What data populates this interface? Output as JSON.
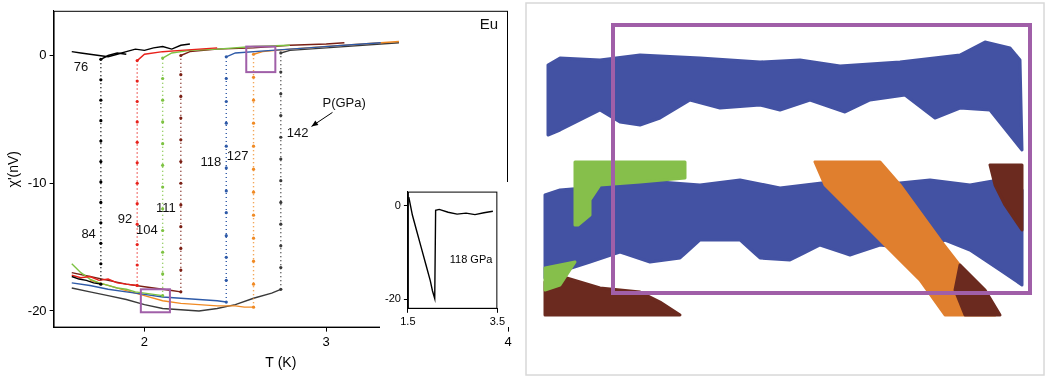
{
  "chart_data": [
    {
      "type": "line",
      "x_label": "T (K)",
      "y_label": "χ'(nV)",
      "annotations": [
        "Eu",
        "P(GPa)"
      ],
      "xlim": [
        1.5,
        4
      ],
      "xticks": [
        2,
        3,
        4
      ],
      "ylim": [
        -21.3,
        3.5
      ],
      "yticks": [
        0,
        -10,
        -20
      ],
      "grid": false,
      "highlight_boxes": [
        {
          "x": [
            2.56,
            2.72
          ],
          "y": [
            -1.3,
            0.7
          ]
        },
        {
          "x": [
            1.98,
            2.14
          ],
          "y": [
            -20.1,
            -18.3
          ]
        }
      ],
      "series": [
        {
          "name": "76",
          "color": "#000000",
          "x": [
            1.6,
            1.65,
            1.7,
            1.75,
            1.8,
            1.85,
            1.9,
            1.95,
            2.0,
            2.05,
            2.1,
            2.15,
            2.2,
            2.25
          ],
          "values": [
            0.3,
            0.2,
            0.1,
            0.0,
            -0.1,
            0.1,
            0.3,
            0.5,
            0.4,
            0.6,
            0.7,
            0.5,
            0.8,
            0.9
          ]
        },
        {
          "name": "84",
          "color": "#000000",
          "x": [
            1.6,
            1.64,
            1.68,
            1.72,
            1.76,
            1.76,
            1.76,
            1.76,
            1.76,
            1.76,
            1.76,
            1.76,
            1.76,
            1.76,
            1.76,
            1.76,
            1.8,
            1.85,
            1.9
          ],
          "values": [
            -17.3,
            -17.5,
            -17.6,
            -17.8,
            -17.9,
            -16.3,
            -14.7,
            -13.1,
            -11.5,
            -9.9,
            -8.3,
            -6.7,
            -5.1,
            -3.5,
            -1.9,
            -0.3,
            0.0,
            0.2,
            0.1
          ]
        },
        {
          "name": "92",
          "color": "#e8211b",
          "x": [
            1.6,
            1.65,
            1.7,
            1.75,
            1.8,
            1.85,
            1.9,
            1.96,
            1.96,
            1.96,
            1.96,
            1.96,
            1.96,
            1.96,
            1.96,
            1.96,
            1.96,
            1.96,
            1.96,
            2.0,
            2.1,
            2.2,
            2.3,
            2.4
          ],
          "values": [
            -17.2,
            -17.4,
            -17.3,
            -17.6,
            -17.5,
            -17.8,
            -17.9,
            -18.0,
            -16.4,
            -14.8,
            -13.2,
            -11.6,
            -10.0,
            -8.4,
            -6.8,
            -5.2,
            -3.6,
            -2.0,
            -0.4,
            0.1,
            0.3,
            0.4,
            0.5,
            0.6
          ]
        },
        {
          "name": "104",
          "color": "#7dc242",
          "x": [
            1.6,
            1.65,
            1.7,
            1.75,
            1.8,
            1.85,
            1.9,
            1.95,
            2.0,
            2.05,
            2.1,
            2.1,
            2.1,
            2.1,
            2.1,
            2.1,
            2.1,
            2.1,
            2.1,
            2.1,
            2.1,
            2.1,
            2.15,
            2.25,
            2.4,
            2.6,
            2.8
          ],
          "values": [
            -16.3,
            -17.0,
            -17.5,
            -17.8,
            -18.0,
            -18.2,
            -18.3,
            -18.5,
            -18.6,
            -18.7,
            -18.8,
            -17.1,
            -15.4,
            -13.7,
            -12.0,
            -10.3,
            -8.6,
            -6.9,
            -5.2,
            -3.5,
            -1.8,
            -0.2,
            0.2,
            0.4,
            0.5,
            0.7,
            0.8
          ]
        },
        {
          "name": "111",
          "color": "#7a1f14",
          "x": [
            1.6,
            1.7,
            1.8,
            1.9,
            2.0,
            2.1,
            2.15,
            2.2,
            2.2,
            2.2,
            2.2,
            2.2,
            2.2,
            2.2,
            2.2,
            2.2,
            2.2,
            2.2,
            2.2,
            2.25,
            2.4,
            2.6,
            2.8,
            3.0,
            3.1
          ],
          "values": [
            -17.0,
            -17.3,
            -17.6,
            -17.9,
            -18.1,
            -18.3,
            -18.4,
            -18.5,
            -16.8,
            -15.1,
            -13.4,
            -11.7,
            -10.0,
            -8.3,
            -6.6,
            -4.9,
            -3.2,
            -1.5,
            0.0,
            0.3,
            0.5,
            0.6,
            0.8,
            0.9,
            1.0
          ]
        },
        {
          "name": "118",
          "color": "#2e5aa8",
          "x": [
            1.6,
            1.7,
            1.8,
            1.9,
            2.0,
            2.1,
            2.2,
            2.3,
            2.4,
            2.45,
            2.45,
            2.45,
            2.45,
            2.45,
            2.45,
            2.45,
            2.45,
            2.45,
            2.45,
            2.45,
            2.45,
            2.5,
            2.7,
            2.9,
            3.1,
            3.3
          ],
          "values": [
            -17.8,
            -18.0,
            -18.3,
            -18.5,
            -18.7,
            -18.9,
            -19.0,
            -19.1,
            -19.2,
            -19.3,
            -17.6,
            -15.8,
            -14.1,
            -12.3,
            -10.6,
            -8.8,
            -7.1,
            -5.3,
            -3.6,
            -1.8,
            -0.1,
            0.2,
            0.4,
            0.6,
            0.8,
            1.0
          ]
        },
        {
          "name": "127",
          "color": "#f08a24",
          "x": [
            1.7,
            1.8,
            1.9,
            2.0,
            2.1,
            2.2,
            2.3,
            2.4,
            2.5,
            2.55,
            2.6,
            2.6,
            2.6,
            2.6,
            2.6,
            2.6,
            2.6,
            2.6,
            2.6,
            2.6,
            2.6,
            2.6,
            2.65,
            2.8,
            3.0,
            3.2,
            3.4
          ],
          "values": [
            -17.6,
            -18.0,
            -18.4,
            -18.8,
            -19.2,
            -19.4,
            -19.5,
            -19.6,
            -19.6,
            -19.7,
            -19.7,
            -17.9,
            -16.1,
            -14.3,
            -12.5,
            -10.7,
            -8.9,
            -7.1,
            -5.3,
            -3.5,
            -1.7,
            0.1,
            0.3,
            0.5,
            0.7,
            0.9,
            1.1
          ]
        },
        {
          "name": "142",
          "color": "#3a3a3a",
          "x": [
            1.6,
            1.7,
            1.8,
            1.9,
            2.0,
            2.1,
            2.2,
            2.3,
            2.4,
            2.5,
            2.6,
            2.7,
            2.75,
            2.75,
            2.75,
            2.75,
            2.75,
            2.75,
            2.75,
            2.75,
            2.75,
            2.75,
            2.75,
            2.75,
            2.8,
            3.0,
            3.2,
            3.4
          ],
          "values": [
            -18.2,
            -18.5,
            -18.8,
            -19.1,
            -19.5,
            -19.8,
            -19.9,
            -20.0,
            -19.8,
            -19.5,
            -19.0,
            -18.6,
            -18.3,
            -16.6,
            -14.9,
            -13.2,
            -11.5,
            -9.8,
            -8.1,
            -6.4,
            -4.7,
            -3.0,
            -1.3,
            0.2,
            0.4,
            0.6,
            0.8,
            1.0
          ]
        }
      ]
    },
    {
      "type": "line",
      "xlim": [
        1.5,
        3.5
      ],
      "xticks": [
        1.5,
        3.5
      ],
      "ylim": [
        -22,
        3
      ],
      "yticks": [
        0,
        -20
      ],
      "grid": false,
      "series": [
        {
          "name": "118 GPa",
          "color": "#000000",
          "x": [
            1.52,
            1.6,
            1.7,
            1.8,
            1.9,
            2.0,
            2.05,
            2.1,
            2.12,
            2.2,
            2.4,
            2.6,
            2.8,
            3.0,
            3.2,
            3.4
          ],
          "values": [
            1.8,
            -2.0,
            -5.5,
            -9.0,
            -12.5,
            -16.0,
            -18.2,
            -19.8,
            -1.0,
            -0.8,
            -1.4,
            -1.8,
            -1.6,
            -1.9,
            -1.5,
            -1.2
          ]
        }
      ]
    }
  ]
}
